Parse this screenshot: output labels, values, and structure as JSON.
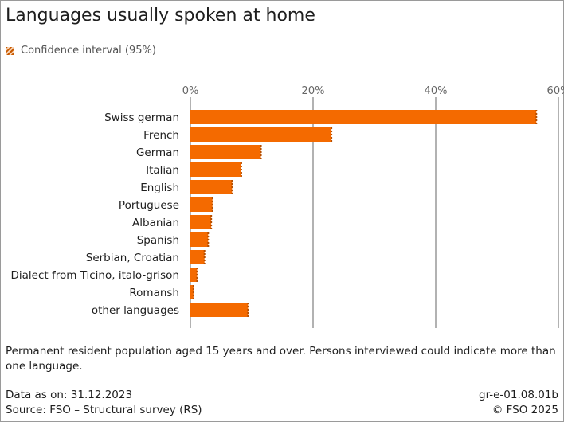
{
  "title": "Languages usually spoken at home",
  "legend": {
    "label": "Confidence interval (95%)"
  },
  "note": "Permanent resident population aged 15 years and over. Persons interviewed could indicate more than one language.",
  "footer": {
    "data_as_on": "Data as on: 31.12.2023",
    "source": "Source: FSO – Structural survey (RS)",
    "id": "gr-e-01.08.01b",
    "copyright": "© FSO 2025"
  },
  "colors": {
    "bar": "#f46a00",
    "ci": "#b44e00",
    "grid": "#666666"
  },
  "chart_data": {
    "type": "bar",
    "orientation": "horizontal",
    "categories": [
      "Swiss german",
      "French",
      "German",
      "Italian",
      "English",
      "Portuguese",
      "Albanian",
      "Spanish",
      "Serbian, Croatian",
      "Dialect from Ticino, italo-grison",
      "Romansh",
      "other languages"
    ],
    "values": [
      56.4,
      23.0,
      11.5,
      8.3,
      6.8,
      3.6,
      3.4,
      2.9,
      2.3,
      1.1,
      0.5,
      9.4
    ],
    "x_ticks": [
      "0%",
      "20%",
      "40%",
      "60%"
    ],
    "xlim": [
      0,
      60
    ],
    "grid": true,
    "legend_position": "top-left"
  }
}
